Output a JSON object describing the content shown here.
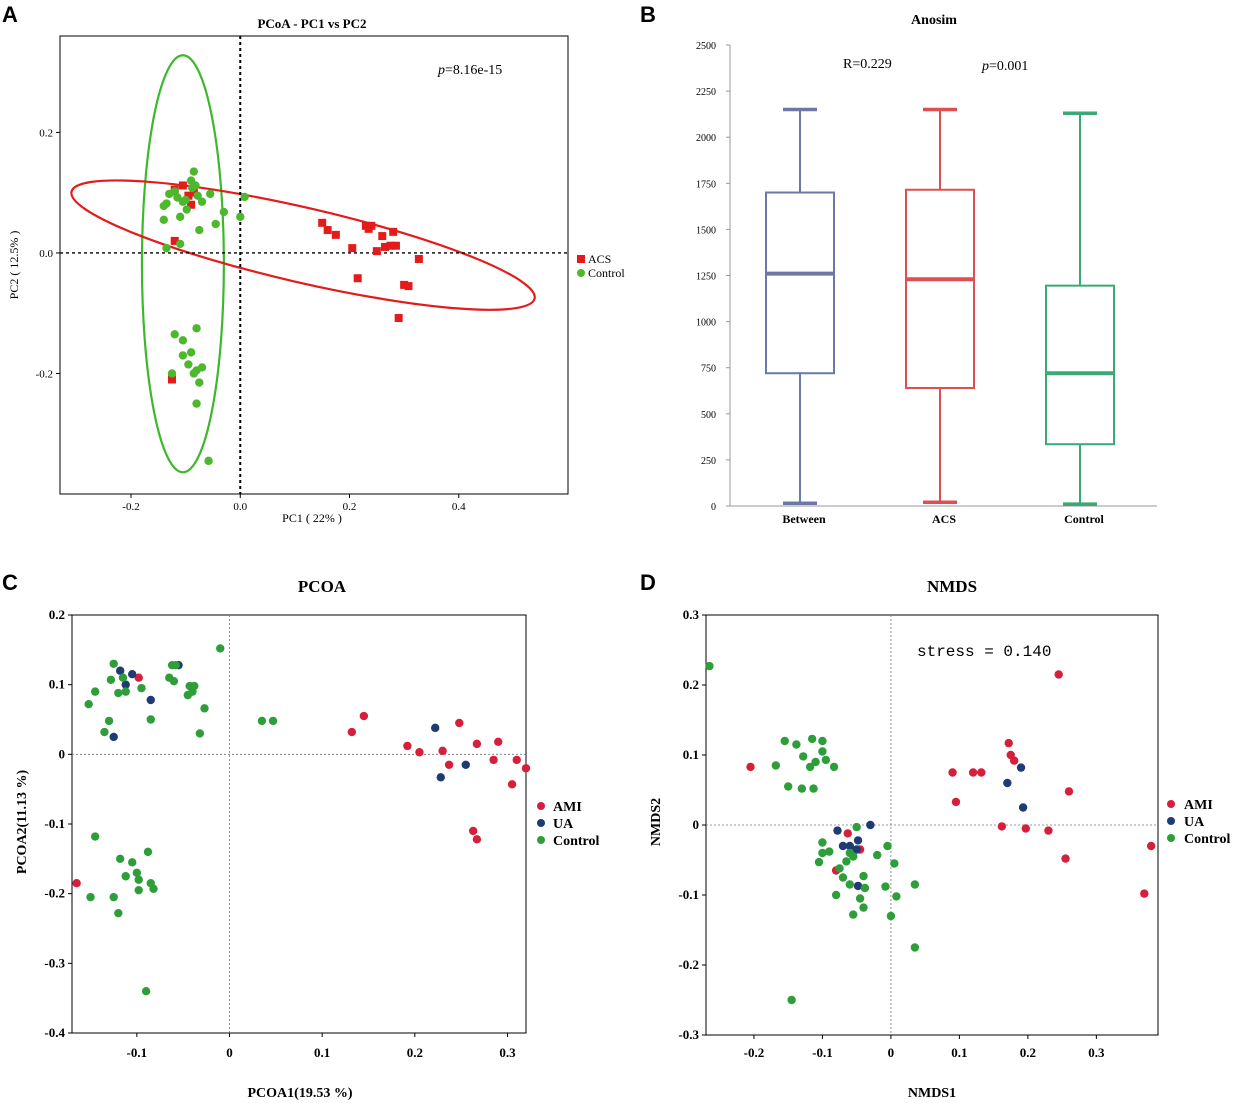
{
  "colors": {
    "red": "#e31b1b",
    "green": "#3db82d",
    "acs_dot": "#e31b1b",
    "ctrl_dot": "#4db82d",
    "ami": "#d61f3a",
    "ua": "#1f3b73",
    "control2": "#2e9e3a",
    "between_box": "#6b78a8",
    "acs_box": "#e04f4f",
    "control_box": "#3aa877"
  },
  "chart_data": [
    {
      "panel": "A",
      "type": "scatter",
      "title": "PCoA - PC1 vs PC2",
      "xlabel": "PC1 ( 22% )",
      "ylabel": "PC2 ( 12.5% )",
      "xlim": [
        -0.33,
        0.6
      ],
      "ylim": [
        -0.4,
        0.36
      ],
      "xticks": [
        {
          "v": -0.2,
          "t": "-0.2"
        },
        {
          "v": 0.0,
          "t": "0.0"
        },
        {
          "v": 0.2,
          "t": "0.2"
        },
        {
          "v": 0.4,
          "t": "0.4"
        }
      ],
      "yticks": [
        {
          "v": 0.2,
          "t": "0.2"
        },
        {
          "v": 0.0,
          "t": "0.0"
        },
        {
          "v": -0.2,
          "t": "-0.2"
        }
      ],
      "annotation": "=8.16e-15",
      "annotation_p": "p",
      "legend": [
        "ACS",
        "Control"
      ],
      "ellipses": [
        {
          "series": "Control",
          "cx": -0.105,
          "cy": -0.018,
          "rx": 0.075,
          "ry": 0.346,
          "angle": 0
        },
        {
          "series": "ACS",
          "cx": 0.115,
          "cy": 0.013,
          "rx": 0.435,
          "ry": 0.062,
          "angle": -13
        }
      ],
      "series": [
        {
          "name": "ACS",
          "marker": "square",
          "points": [
            [
              -0.12,
              0.105
            ],
            [
              -0.105,
              0.112
            ],
            [
              -0.095,
              0.095
            ],
            [
              -0.085,
              0.1
            ],
            [
              -0.09,
              0.08
            ],
            [
              -0.12,
              0.02
            ],
            [
              -0.125,
              -0.21
            ],
            [
              0.15,
              0.05
            ],
            [
              0.16,
              0.038
            ],
            [
              0.175,
              0.03
            ],
            [
              0.205,
              0.008
            ],
            [
              0.215,
              -0.042
            ],
            [
              0.23,
              0.045
            ],
            [
              0.235,
              0.04
            ],
            [
              0.24,
              0.045
            ],
            [
              0.25,
              0.003
            ],
            [
              0.26,
              0.028
            ],
            [
              0.265,
              0.01
            ],
            [
              0.275,
              0.012
            ],
            [
              0.28,
              0.035
            ],
            [
              0.285,
              0.012
            ],
            [
              0.29,
              -0.108
            ],
            [
              0.3,
              -0.053
            ],
            [
              0.308,
              -0.055
            ],
            [
              0.327,
              -0.01
            ]
          ]
        },
        {
          "name": "Control",
          "points": [
            [
              -0.14,
              0.078
            ],
            [
              -0.135,
              0.082
            ],
            [
              -0.13,
              0.098
            ],
            [
              -0.12,
              0.102
            ],
            [
              -0.115,
              0.092
            ],
            [
              -0.11,
              0.06
            ],
            [
              -0.105,
              0.085
            ],
            [
              -0.1,
              0.088
            ],
            [
              -0.098,
              0.072
            ],
            [
              -0.09,
              0.12
            ],
            [
              -0.088,
              0.108
            ],
            [
              -0.085,
              0.135
            ],
            [
              -0.082,
              0.112
            ],
            [
              -0.078,
              0.095
            ],
            [
              -0.075,
              0.038
            ],
            [
              -0.07,
              0.085
            ],
            [
              -0.055,
              0.098
            ],
            [
              -0.045,
              0.048
            ],
            [
              -0.03,
              0.068
            ],
            [
              0.0,
              0.06
            ],
            [
              0.008,
              0.093
            ],
            [
              -0.14,
              0.055
            ],
            [
              -0.135,
              0.008
            ],
            [
              -0.11,
              0.015
            ],
            [
              -0.125,
              -0.2
            ],
            [
              -0.12,
              -0.135
            ],
            [
              -0.105,
              -0.145
            ],
            [
              -0.105,
              -0.17
            ],
            [
              -0.095,
              -0.185
            ],
            [
              -0.09,
              -0.165
            ],
            [
              -0.085,
              -0.2
            ],
            [
              -0.08,
              -0.195
            ],
            [
              -0.08,
              -0.125
            ],
            [
              -0.075,
              -0.215
            ],
            [
              -0.07,
              -0.19
            ],
            [
              -0.08,
              -0.25
            ],
            [
              -0.058,
              -0.345
            ]
          ]
        }
      ]
    },
    {
      "panel": "B",
      "type": "box",
      "title": "Anosim",
      "categories": [
        "Between",
        "ACS",
        "Control"
      ],
      "ylim": [
        0,
        2500
      ],
      "yticks": [
        0,
        250,
        500,
        750,
        1000,
        1250,
        1500,
        1750,
        2000,
        2250,
        2500
      ],
      "annotations": [
        "R=0.229",
        "=0.001"
      ],
      "annotation_p": "p",
      "boxes": [
        {
          "name": "Between",
          "min": 15,
          "q1": 720,
          "median": 1260,
          "q3": 1700,
          "max": 2150
        },
        {
          "name": "ACS",
          "min": 20,
          "q1": 640,
          "median": 1230,
          "q3": 1715,
          "max": 2150
        },
        {
          "name": "Control",
          "min": 10,
          "q1": 335,
          "median": 720,
          "q3": 1195,
          "max": 2130
        }
      ]
    },
    {
      "panel": "C",
      "type": "scatter",
      "title": "PCOA",
      "xlabel": "PCOA1(19.53 %)",
      "ylabel": "PCOA2(11.13 %)",
      "xlim": [
        -0.17,
        0.32
      ],
      "ylim": [
        -0.4,
        0.2
      ],
      "xticks": [
        {
          "v": -0.1,
          "t": "-0.1"
        },
        {
          "v": 0,
          "t": "0"
        },
        {
          "v": 0.1,
          "t": "0.1"
        },
        {
          "v": 0.2,
          "t": "0.2"
        },
        {
          "v": 0.3,
          "t": "0.3"
        }
      ],
      "yticks": [
        {
          "v": 0.2,
          "t": "0.2"
        },
        {
          "v": 0.1,
          "t": "0.1"
        },
        {
          "v": 0,
          "t": "0"
        },
        {
          "v": -0.1,
          "t": "-0.1"
        },
        {
          "v": -0.2,
          "t": "-0.2"
        },
        {
          "v": -0.3,
          "t": "-0.3"
        },
        {
          "v": -0.4,
          "t": "-0.4"
        }
      ],
      "legend": [
        "AMI",
        "UA",
        "Control"
      ],
      "series": [
        {
          "name": "AMI",
          "points": [
            [
              -0.098,
              0.11
            ],
            [
              -0.165,
              -0.185
            ],
            [
              0.132,
              0.032
            ],
            [
              0.145,
              0.055
            ],
            [
              0.192,
              0.012
            ],
            [
              0.205,
              0.003
            ],
            [
              0.23,
              0.005
            ],
            [
              0.237,
              -0.015
            ],
            [
              0.248,
              0.045
            ],
            [
              0.267,
              0.015
            ],
            [
              0.285,
              -0.008
            ],
            [
              0.29,
              0.018
            ],
            [
              0.305,
              -0.043
            ],
            [
              0.31,
              -0.008
            ],
            [
              0.32,
              -0.02
            ],
            [
              0.263,
              -0.11
            ],
            [
              0.267,
              -0.122
            ]
          ]
        },
        {
          "name": "UA",
          "points": [
            [
              -0.125,
              0.025
            ],
            [
              -0.118,
              0.12
            ],
            [
              -0.112,
              0.1
            ],
            [
              -0.105,
              0.115
            ],
            [
              -0.085,
              0.078
            ],
            [
              -0.055,
              0.128
            ],
            [
              0.222,
              0.038
            ],
            [
              0.228,
              -0.033
            ],
            [
              0.255,
              -0.015
            ]
          ]
        },
        {
          "name": "Control",
          "points": [
            [
              -0.152,
              0.072
            ],
            [
              -0.145,
              0.09
            ],
            [
              -0.135,
              0.032
            ],
            [
              -0.13,
              0.048
            ],
            [
              -0.128,
              0.107
            ],
            [
              -0.125,
              0.13
            ],
            [
              -0.12,
              0.088
            ],
            [
              -0.115,
              0.11
            ],
            [
              -0.112,
              0.09
            ],
            [
              -0.095,
              0.095
            ],
            [
              -0.085,
              0.05
            ],
            [
              -0.065,
              0.11
            ],
            [
              -0.062,
              0.128
            ],
            [
              -0.058,
              0.128
            ],
            [
              -0.06,
              0.105
            ],
            [
              -0.045,
              0.085
            ],
            [
              -0.043,
              0.098
            ],
            [
              -0.04,
              0.09
            ],
            [
              -0.038,
              0.098
            ],
            [
              -0.032,
              0.03
            ],
            [
              -0.027,
              0.066
            ],
            [
              -0.01,
              0.152
            ],
            [
              0.035,
              0.048
            ],
            [
              0.047,
              0.048
            ],
            [
              -0.15,
              -0.205
            ],
            [
              -0.145,
              -0.118
            ],
            [
              -0.125,
              -0.205
            ],
            [
              -0.12,
              -0.228
            ],
            [
              -0.118,
              -0.15
            ],
            [
              -0.112,
              -0.175
            ],
            [
              -0.105,
              -0.155
            ],
            [
              -0.1,
              -0.17
            ],
            [
              -0.098,
              -0.18
            ],
            [
              -0.098,
              -0.195
            ],
            [
              -0.088,
              -0.14
            ],
            [
              -0.085,
              -0.185
            ],
            [
              -0.082,
              -0.193
            ],
            [
              -0.09,
              -0.34
            ]
          ]
        }
      ]
    },
    {
      "panel": "D",
      "type": "scatter",
      "title": "NMDS",
      "xlabel": "NMDS1",
      "ylabel": "NMDS2",
      "xlim": [
        -0.27,
        0.39
      ],
      "ylim": [
        -0.3,
        0.3
      ],
      "xticks": [
        {
          "v": -0.2,
          "t": "-0.2"
        },
        {
          "v": -0.1,
          "t": "-0.1"
        },
        {
          "v": 0,
          "t": "0"
        },
        {
          "v": 0.1,
          "t": "0.1"
        },
        {
          "v": 0.2,
          "t": "0.2"
        },
        {
          "v": 0.3,
          "t": "0.3"
        }
      ],
      "yticks": [
        {
          "v": 0.3,
          "t": "0.3"
        },
        {
          "v": 0.2,
          "t": "0.2"
        },
        {
          "v": 0.1,
          "t": "0.1"
        },
        {
          "v": 0,
          "t": "0"
        },
        {
          "v": -0.1,
          "t": "-0.1"
        },
        {
          "v": -0.2,
          "t": "-0.2"
        },
        {
          "v": -0.3,
          "t": "-0.3"
        }
      ],
      "annotation": "stress = 0.140",
      "legend": [
        "AMI",
        "UA",
        "Control"
      ],
      "series": [
        {
          "name": "AMI",
          "points": [
            [
              -0.205,
              0.083
            ],
            [
              -0.08,
              -0.065
            ],
            [
              -0.063,
              -0.012
            ],
            [
              -0.045,
              -0.035
            ],
            [
              0.09,
              0.075
            ],
            [
              0.095,
              0.033
            ],
            [
              0.12,
              0.075
            ],
            [
              0.132,
              0.075
            ],
            [
              0.162,
              -0.002
            ],
            [
              0.172,
              0.117
            ],
            [
              0.175,
              0.1
            ],
            [
              0.18,
              0.092
            ],
            [
              0.197,
              -0.005
            ],
            [
              0.23,
              -0.008
            ],
            [
              0.245,
              0.215
            ],
            [
              0.255,
              -0.048
            ],
            [
              0.26,
              0.048
            ],
            [
              0.37,
              -0.098
            ],
            [
              0.38,
              -0.03
            ]
          ]
        },
        {
          "name": "UA",
          "points": [
            [
              -0.078,
              -0.008
            ],
            [
              -0.07,
              -0.03
            ],
            [
              -0.06,
              -0.03
            ],
            [
              -0.05,
              -0.035
            ],
            [
              -0.048,
              -0.022
            ],
            [
              -0.03,
              0.0
            ],
            [
              -0.048,
              -0.087
            ],
            [
              0.17,
              0.06
            ],
            [
              0.19,
              0.082
            ],
            [
              0.193,
              0.025
            ]
          ]
        },
        {
          "name": "Control",
          "points": [
            [
              -0.265,
              0.227
            ],
            [
              -0.168,
              0.085
            ],
            [
              -0.155,
              0.12
            ],
            [
              -0.15,
              0.055
            ],
            [
              -0.138,
              0.115
            ],
            [
              -0.13,
              0.052
            ],
            [
              -0.128,
              0.098
            ],
            [
              -0.118,
              0.083
            ],
            [
              -0.115,
              0.123
            ],
            [
              -0.113,
              0.052
            ],
            [
              -0.11,
              0.09
            ],
            [
              -0.1,
              0.105
            ],
            [
              -0.1,
              0.12
            ],
            [
              -0.095,
              0.093
            ],
            [
              -0.083,
              0.083
            ],
            [
              -0.105,
              -0.053
            ],
            [
              -0.1,
              -0.04
            ],
            [
              -0.1,
              -0.025
            ],
            [
              -0.09,
              -0.038
            ],
            [
              -0.08,
              -0.1
            ],
            [
              -0.075,
              -0.062
            ],
            [
              -0.07,
              -0.075
            ],
            [
              -0.065,
              -0.052
            ],
            [
              -0.06,
              -0.04
            ],
            [
              -0.06,
              -0.085
            ],
            [
              -0.055,
              -0.045
            ],
            [
              -0.055,
              -0.128
            ],
            [
              -0.05,
              -0.003
            ],
            [
              -0.045,
              -0.105
            ],
            [
              -0.04,
              -0.073
            ],
            [
              -0.04,
              -0.118
            ],
            [
              -0.038,
              -0.09
            ],
            [
              -0.02,
              -0.043
            ],
            [
              -0.008,
              -0.088
            ],
            [
              -0.005,
              -0.03
            ],
            [
              0.0,
              -0.13
            ],
            [
              0.005,
              -0.055
            ],
            [
              0.008,
              -0.102
            ],
            [
              0.035,
              -0.085
            ],
            [
              0.035,
              -0.175
            ],
            [
              -0.145,
              -0.25
            ]
          ]
        }
      ]
    }
  ]
}
